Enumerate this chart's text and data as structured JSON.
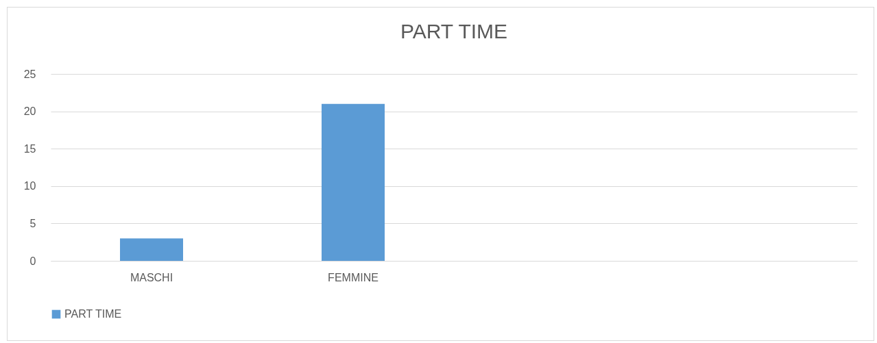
{
  "chart_data": {
    "type": "bar",
    "title": "PART TIME",
    "categories": [
      "MASCHI",
      "FEMMINE",
      null,
      null
    ],
    "series": [
      {
        "name": "PART TIME",
        "color": "#5b9bd5",
        "values": [
          3,
          21,
          null,
          null
        ]
      }
    ],
    "ylim": [
      0,
      25
    ],
    "yticks": [
      0,
      5,
      10,
      15,
      20,
      25
    ],
    "grid": "y",
    "legend": "bottom"
  }
}
